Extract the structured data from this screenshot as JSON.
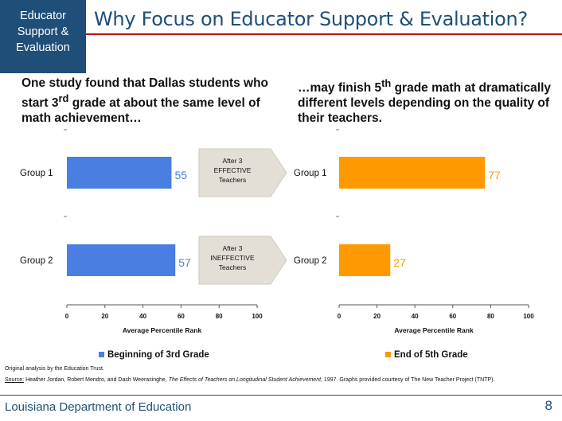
{
  "header": {
    "brand_lines": [
      "Educator",
      "Support &",
      "Evaluation"
    ],
    "title": "Why Focus on Educator Support & Evaluation?"
  },
  "captions": {
    "left": {
      "pre": "One study found that Dallas students who start 3",
      "sup": "rd",
      "post": " grade at about the same level of math achievement…"
    },
    "right": {
      "pre": "…may finish 5",
      "sup": "th",
      "post": " grade math at dramatically different levels depending on the quality of their teachers."
    }
  },
  "arrows": [
    {
      "lines": [
        "After 3",
        "EFFECTIVE",
        "Teachers"
      ]
    },
    {
      "lines": [
        "After 3",
        "INEFFECTIVE",
        "Teachers"
      ]
    }
  ],
  "chart_data": [
    {
      "type": "bar",
      "orientation": "horizontal",
      "categories": [
        "Group 1",
        "Group 2"
      ],
      "series": [
        {
          "name": "Beginning of 3rd Grade",
          "values": [
            55,
            57
          ]
        }
      ],
      "data_labels": [
        "55",
        "57"
      ],
      "xlabel": "Average Percentile Rank",
      "xlim": [
        0,
        100
      ],
      "xticks": [
        0,
        20,
        40,
        60,
        80,
        100
      ],
      "legend": "bottom",
      "colors": {
        "bar": "#4a7ee0",
        "label": "#4a7ee0"
      }
    },
    {
      "type": "bar",
      "orientation": "horizontal",
      "categories": [
        "Group 1",
        "Group 2"
      ],
      "series": [
        {
          "name": "End of 5th Grade",
          "values": [
            77,
            27
          ]
        }
      ],
      "data_labels": [
        "77",
        "27"
      ],
      "xlabel": "Average Percentile Rank",
      "xlim": [
        0,
        100
      ],
      "xticks": [
        0,
        20,
        40,
        60,
        80,
        100
      ],
      "legend": "bottom",
      "colors": {
        "bar": "#ff9900",
        "label": "#ff9900"
      }
    }
  ],
  "footnotes": {
    "line1": "Original analysis by the Education Trust.",
    "source_label": "Source:",
    "source_authors": " Heather Jordan, Robert Mendro, and Dash Weerasinghe, ",
    "source_title": "The Effects of Teachers on Longitudinal Student Achievement",
    "source_rest": ", 1997. Graphs provided courtesy of The New Teacher Project (TNTP)."
  },
  "footer": {
    "organization": "Louisiana Department of Education",
    "page_number": "8"
  }
}
